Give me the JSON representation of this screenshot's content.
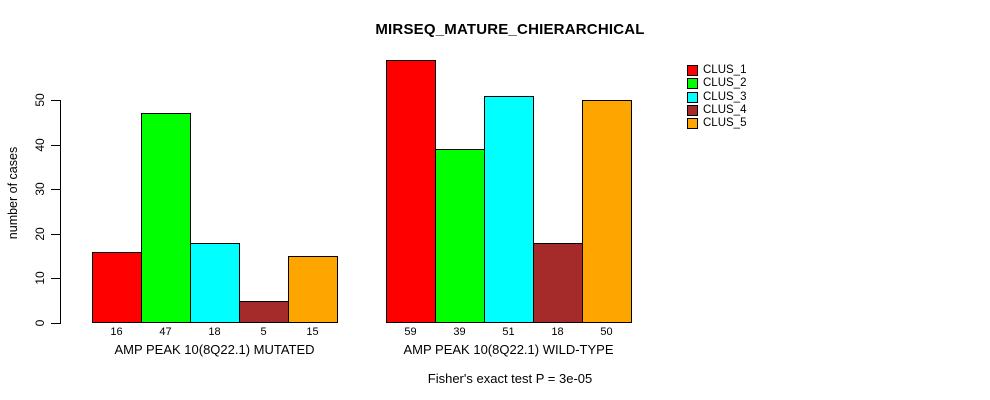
{
  "chart_data": {
    "type": "bar",
    "title": "MIRSEQ_MATURE_CHIERARCHICAL",
    "ylabel": "number of cases",
    "xlabel": "Fisher's exact test P = 3e-05",
    "y_ticks": [
      0,
      10,
      20,
      30,
      40,
      50
    ],
    "ylim": [
      0,
      59
    ],
    "grid": false,
    "legend_position": "right",
    "bar_border_color": "#000000",
    "series_names": [
      "CLUS_1",
      "CLUS_2",
      "CLUS_3",
      "CLUS_4",
      "CLUS_5"
    ],
    "colors": [
      "#FF0000",
      "#00FF00",
      "#00FFFF",
      "#A52A2A",
      "#FFA500"
    ],
    "groups": [
      {
        "label": "AMP PEAK 10(8Q22.1) MUTATED",
        "values": [
          16,
          47,
          18,
          5,
          15
        ],
        "value_labels": [
          "16",
          "47",
          "18",
          "5",
          "15"
        ]
      },
      {
        "label": "AMP PEAK 10(8Q22.1) WILD-TYPE",
        "values": [
          59,
          39,
          51,
          18,
          50
        ],
        "value_labels": [
          "59",
          "39",
          "51",
          "18",
          "50"
        ]
      }
    ]
  }
}
